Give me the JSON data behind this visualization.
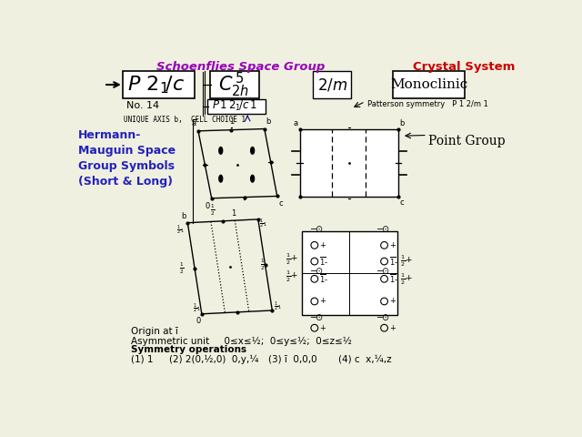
{
  "bg_color": "#f0f0e0",
  "schoenflies_label": "Schoenflies Space Group",
  "crystal_system_label": "Crystal System",
  "hm_label": "Hermann-\nMauguin Space\nGroup Symbols\n(Short & Long)",
  "point_group_label": "Point Group",
  "no_label": "No. 14",
  "unique_axis": "UNIQUE AXIS b,  CELL CHOICE 1",
  "patterson": "Patterson symmetry   P 1 2/m 1",
  "origin_text": "Origin at ī",
  "asym_unit": "Asymmetric unit     0≤x≤½;  0≤y≤½;  0≤z≤½",
  "sym_ops_title": "Symmetry operations",
  "sym_op1": "(1) 1",
  "sym_op2": "(2) 2(0,½,0)  0,y,¼",
  "sym_op3": "(3) ī  0,0,0",
  "sym_op4": "(4) c  x,¼,z",
  "color_blue": "#2222bb",
  "color_red": "#cc0000",
  "color_purple": "#9900bb",
  "color_black": "#000000",
  "color_white": "#ffffff",
  "color_lightgray": "#e8e8d8"
}
